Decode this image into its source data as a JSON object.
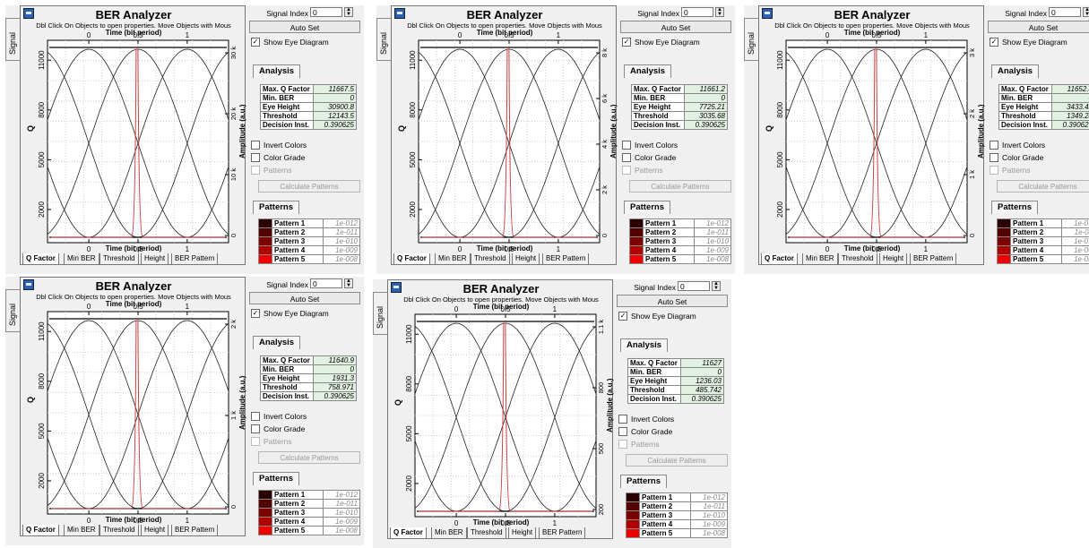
{
  "panels": [
    {
      "signal_tab": "Signal",
      "title": "BER Analyzer",
      "hint": "Dbl Click On Objects to open properties.  Move Objects with Mous",
      "x_axis_top": "Time (bit period)",
      "x_axis_bottom": "Time (bit period)",
      "y_axis": "Q",
      "y2_axis": "Amplitude (a.u.)",
      "x_ticks": [
        "0",
        "0.5",
        "1"
      ],
      "y_ticks": [
        "11000",
        "8000",
        "5000",
        "2000"
      ],
      "y2_ticks": [
        "30 k",
        "20 k",
        "10 k",
        "0"
      ],
      "tabs": [
        "Q Factor",
        "Min BER",
        "Threshold",
        "Height",
        "BER Pattern"
      ],
      "signal_index_label": "Signal Index",
      "signal_index_value": "0",
      "auto_set": "Auto Set",
      "show_eye": "Show Eye Diagram",
      "analysis_header": "Analysis",
      "analysis": [
        {
          "k": "Max. Q Factor",
          "v": "11667.5"
        },
        {
          "k": "Min. BER",
          "v": "0"
        },
        {
          "k": "Eye Height",
          "v": "30900.8"
        },
        {
          "k": "Threshold",
          "v": "12143.5"
        },
        {
          "k": "Decision Inst.",
          "v": "0.390625"
        }
      ],
      "invert_colors": "Invert Colors",
      "color_grade": "Color Grade",
      "patterns_chk": "Patterns",
      "calc_patterns": "Calculate Patterns",
      "patterns_header": "Patterns",
      "patterns": [
        {
          "name": "Pattern 1",
          "val": "1e-012",
          "color": "#2a0000"
        },
        {
          "name": "Pattern 2",
          "val": "1e-011",
          "color": "#520000"
        },
        {
          "name": "Pattern 3",
          "val": "1e-010",
          "color": "#7d0000"
        },
        {
          "name": "Pattern 4",
          "val": "1e-009",
          "color": "#b00000"
        },
        {
          "name": "Pattern 5",
          "val": "1e-008",
          "color": "#ee0000"
        }
      ]
    },
    {
      "signal_tab": "Signal",
      "title": "BER Analyzer",
      "hint": "Dbl Click On Objects to open properties.  Move Objects with Mous",
      "x_axis_top": "Time (bit period)",
      "x_axis_bottom": "Time (bit period)",
      "y_axis": "Q",
      "y2_axis": "Amplitude (a.u.)",
      "x_ticks": [
        "0",
        "0.5",
        "1"
      ],
      "y_ticks": [
        "11000",
        "8000",
        "5000",
        "2000"
      ],
      "y2_ticks": [
        "8 k",
        "6 k",
        "4 k",
        "2 k",
        "0"
      ],
      "tabs": [
        "Q Factor",
        "Min BER",
        "Threshold",
        "Height",
        "BER Pattern"
      ],
      "signal_index_label": "Signal Index",
      "signal_index_value": "0",
      "auto_set": "Auto Set",
      "show_eye": "Show Eye Diagram",
      "analysis_header": "Analysis",
      "analysis": [
        {
          "k": "Max. Q Factor",
          "v": "11661.2"
        },
        {
          "k": "Min. BER",
          "v": "0"
        },
        {
          "k": "Eye Height",
          "v": "7725.21"
        },
        {
          "k": "Threshold",
          "v": "3035.68"
        },
        {
          "k": "Decision Inst.",
          "v": "0.390625"
        }
      ],
      "invert_colors": "Invert Colors",
      "color_grade": "Color Grade",
      "patterns_chk": "Patterns",
      "calc_patterns": "Calculate Patterns",
      "patterns_header": "Patterns",
      "patterns": [
        {
          "name": "Pattern 1",
          "val": "1e-012",
          "color": "#2a0000"
        },
        {
          "name": "Pattern 2",
          "val": "1e-011",
          "color": "#520000"
        },
        {
          "name": "Pattern 3",
          "val": "1e-010",
          "color": "#7d0000"
        },
        {
          "name": "Pattern 4",
          "val": "1e-009",
          "color": "#b00000"
        },
        {
          "name": "Pattern 5",
          "val": "1e-008",
          "color": "#ee0000"
        }
      ]
    },
    {
      "signal_tab": "Signal",
      "title": "BER Analyzer",
      "hint": "Dbl Click On Objects to open properties.  Move Objects with Mous",
      "x_axis_top": "Time (bit period)",
      "x_axis_bottom": "Time (bit period)",
      "y_axis": "Q",
      "y2_axis": "Amplitude (a.u.)",
      "x_ticks": [
        "0",
        "0.5",
        "1"
      ],
      "y_ticks": [
        "11000",
        "8000",
        "5000",
        "2000"
      ],
      "y2_ticks": [
        "3 k",
        "2 k",
        "1 k",
        "0"
      ],
      "tabs": [
        "Q Factor",
        "Min BER",
        "Threshold",
        "Height",
        "BER Pattern"
      ],
      "signal_index_label": "Signal Index",
      "signal_index_value": "0",
      "auto_set": "Auto Set",
      "show_eye": "Show Eye Diagram",
      "analysis_header": "Analysis",
      "analysis": [
        {
          "k": "Max. Q Factor",
          "v": "11652.3"
        },
        {
          "k": "Min. BER",
          "v": "0"
        },
        {
          "k": "Eye Height",
          "v": "3433.42"
        },
        {
          "k": "Threshold",
          "v": "1349.28"
        },
        {
          "k": "Decision Inst.",
          "v": "0.390625"
        }
      ],
      "invert_colors": "Invert Colors",
      "color_grade": "Color Grade",
      "patterns_chk": "Patterns",
      "calc_patterns": "Calculate Patterns",
      "patterns_header": "Patterns",
      "patterns": [
        {
          "name": "Pattern 1",
          "val": "1e-012",
          "color": "#2a0000"
        },
        {
          "name": "Pattern 2",
          "val": "1e-011",
          "color": "#520000"
        },
        {
          "name": "Pattern 3",
          "val": "1e-010",
          "color": "#7d0000"
        },
        {
          "name": "Pattern 4",
          "val": "1e-009",
          "color": "#b00000"
        },
        {
          "name": "Pattern 5",
          "val": "1e-008",
          "color": "#ee0000"
        }
      ]
    },
    {
      "signal_tab": "Signal",
      "title": "BER Analyzer",
      "hint": "Dbl Click On Objects to open properties.  Move Objects with Mous",
      "x_axis_top": "Time (bit period)",
      "x_axis_bottom": "Time (bit period)",
      "y_axis": "Q",
      "y2_axis": "Amplitude (a.u.)",
      "x_ticks": [
        "0",
        "0.5",
        "1"
      ],
      "y_ticks": [
        "11000",
        "8000",
        "5000",
        "2000"
      ],
      "y2_ticks": [
        "2 k",
        "1 k",
        "0"
      ],
      "tabs": [
        "Q Factor",
        "Min BER",
        "Threshold",
        "Height",
        "BER Pattern"
      ],
      "signal_index_label": "Signal Index",
      "signal_index_value": "0",
      "auto_set": "Auto Set",
      "show_eye": "Show Eye Diagram",
      "analysis_header": "Analysis",
      "analysis": [
        {
          "k": "Max. Q Factor",
          "v": "11640.9"
        },
        {
          "k": "Min. BER",
          "v": "0"
        },
        {
          "k": "Eye Height",
          "v": "1931.3"
        },
        {
          "k": "Threshold",
          "v": "758.971"
        },
        {
          "k": "Decision Inst.",
          "v": "0.390625"
        }
      ],
      "invert_colors": "Invert Colors",
      "color_grade": "Color Grade",
      "patterns_chk": "Patterns",
      "calc_patterns": "Calculate Patterns",
      "patterns_header": "Patterns",
      "patterns": [
        {
          "name": "Pattern 1",
          "val": "1e-012",
          "color": "#2a0000"
        },
        {
          "name": "Pattern 2",
          "val": "1e-011",
          "color": "#520000"
        },
        {
          "name": "Pattern 3",
          "val": "1e-010",
          "color": "#7d0000"
        },
        {
          "name": "Pattern 4",
          "val": "1e-009",
          "color": "#b00000"
        },
        {
          "name": "Pattern 5",
          "val": "1e-008",
          "color": "#ee0000"
        }
      ]
    },
    {
      "signal_tab": "Signal",
      "title": "BER Analyzer",
      "hint": "Dbl Click On Objects to open properties.  Move Objects with Mous",
      "x_axis_top": "Time (bit period)",
      "x_axis_bottom": "Time (bit period)",
      "y_axis": "Q",
      "y2_axis": "Amplitude (a.u.)",
      "x_ticks": [
        "0",
        "0.5",
        "1"
      ],
      "y_ticks": [
        "11000",
        "8000",
        "5000",
        "2000"
      ],
      "y2_ticks": [
        "1.1 k",
        "800",
        "500",
        "200"
      ],
      "tabs": [
        "Q Factor",
        "Min BER",
        "Threshold",
        "Height",
        "BER Pattern"
      ],
      "signal_index_label": "Signal Index",
      "signal_index_value": "0",
      "auto_set": "Auto Set",
      "show_eye": "Show Eye Diagram",
      "analysis_header": "Analysis",
      "analysis": [
        {
          "k": "Max. Q Factor",
          "v": "11627"
        },
        {
          "k": "Min. BER",
          "v": "0"
        },
        {
          "k": "Eye Height",
          "v": "1236.03"
        },
        {
          "k": "Threshold",
          "v": "485.742"
        },
        {
          "k": "Decision Inst.",
          "v": "0.390625"
        }
      ],
      "invert_colors": "Invert Colors",
      "color_grade": "Color Grade",
      "patterns_chk": "Patterns",
      "calc_patterns": "Calculate Patterns",
      "patterns_header": "Patterns",
      "patterns": [
        {
          "name": "Pattern 1",
          "val": "1e-012",
          "color": "#2a0000"
        },
        {
          "name": "Pattern 2",
          "val": "1e-011",
          "color": "#520000"
        },
        {
          "name": "Pattern 3",
          "val": "1e-010",
          "color": "#7d0000"
        },
        {
          "name": "Pattern 4",
          "val": "1e-009",
          "color": "#b00000"
        },
        {
          "name": "Pattern 5",
          "val": "1e-008",
          "color": "#ee0000"
        }
      ]
    }
  ],
  "colors": {
    "analysis_value_bg": "#e2f1e2",
    "q_curve": "#c84040",
    "eye_trace": "#222222"
  }
}
